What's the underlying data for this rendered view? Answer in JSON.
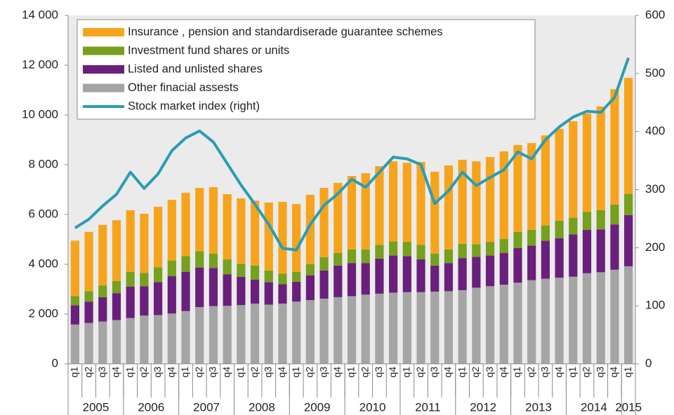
{
  "chart_data": {
    "type": "bar",
    "stacked": true,
    "categories": [
      "q1",
      "q2",
      "q3",
      "q4",
      "q1",
      "q2",
      "q3",
      "q4",
      "q1",
      "q2",
      "q3",
      "q4",
      "q1",
      "q2",
      "q3",
      "q4",
      "q1",
      "q2",
      "q3",
      "q4",
      "q1",
      "q2",
      "q3",
      "q4",
      "q1",
      "q2",
      "q3",
      "q4",
      "q1",
      "q2",
      "q3",
      "q4",
      "q1",
      "q2",
      "q3",
      "q4",
      "q1",
      "q2",
      "q3",
      "q4",
      "q1"
    ],
    "groups": [
      {
        "label": "2005",
        "count": 4
      },
      {
        "label": "2006",
        "count": 4
      },
      {
        "label": "2007",
        "count": 4
      },
      {
        "label": "2008",
        "count": 4
      },
      {
        "label": "2009",
        "count": 4
      },
      {
        "label": "2010",
        "count": 4
      },
      {
        "label": "2011",
        "count": 4
      },
      {
        "label": "2012",
        "count": 4
      },
      {
        "label": "2013",
        "count": 4
      },
      {
        "label": "2014",
        "count": 4
      },
      {
        "label": "2015",
        "count": 1
      }
    ],
    "series": [
      {
        "name": "Other finacial assests",
        "color": "#a5a5a5",
        "type": "bar",
        "values": [
          1580,
          1640,
          1700,
          1760,
          1840,
          1940,
          1960,
          2020,
          2120,
          2280,
          2320,
          2330,
          2360,
          2420,
          2380,
          2420,
          2500,
          2560,
          2620,
          2680,
          2720,
          2780,
          2820,
          2860,
          2880,
          2880,
          2900,
          2920,
          2960,
          3060,
          3120,
          3180,
          3260,
          3360,
          3420,
          3460,
          3500,
          3640,
          3680,
          3780,
          3920
        ]
      },
      {
        "name": "Listed and unlisted shares",
        "color": "#6a1f7c",
        "type": "bar",
        "values": [
          770,
          860,
          980,
          1080,
          1260,
          1180,
          1320,
          1500,
          1580,
          1590,
          1530,
          1270,
          1140,
          960,
          900,
          780,
          800,
          990,
          1130,
          1270,
          1330,
          1270,
          1410,
          1490,
          1450,
          1320,
          1050,
          1130,
          1290,
          1240,
          1230,
          1270,
          1390,
          1390,
          1530,
          1590,
          1700,
          1740,
          1720,
          1820,
          2060
        ]
      },
      {
        "name": "Investment fund shares or units",
        "color": "#76a01d",
        "type": "bar",
        "values": [
          370,
          420,
          470,
          490,
          600,
          530,
          600,
          630,
          630,
          650,
          580,
          600,
          520,
          570,
          470,
          420,
          400,
          450,
          530,
          510,
          550,
          550,
          550,
          570,
          570,
          580,
          480,
          550,
          570,
          500,
          550,
          570,
          650,
          630,
          610,
          700,
          670,
          730,
          770,
          800,
          850
        ]
      },
      {
        "name": "Insurance , pension and standardiserade guarantee schemes",
        "color": "#f7a41d",
        "type": "bar",
        "values": [
          2230,
          2380,
          2430,
          2440,
          2470,
          2380,
          2430,
          2440,
          2540,
          2550,
          2670,
          2620,
          2630,
          2610,
          2730,
          2890,
          2720,
          2790,
          2790,
          2810,
          2950,
          3060,
          3160,
          3220,
          3180,
          3330,
          3290,
          3370,
          3380,
          3340,
          3410,
          3520,
          3490,
          3490,
          3620,
          3690,
          3880,
          3950,
          4170,
          4640,
          4660
        ]
      },
      {
        "name": "Stock market index (right)",
        "color": "#2a9db3",
        "type": "line",
        "axis": "y2",
        "values": [
          234,
          249,
          272,
          292,
          330,
          302,
          327,
          367,
          389,
          401,
          382,
          345,
          308,
          275,
          240,
          199,
          196,
          240,
          273,
          293,
          318,
          304,
          330,
          356,
          353,
          343,
          276,
          298,
          330,
          307,
          321,
          334,
          365,
          353,
          386,
          408,
          425,
          435,
          433,
          459,
          527
        ]
      }
    ],
    "legend_order": [
      3,
      2,
      1,
      0,
      4
    ],
    "legend": "upper left",
    "ylim": [
      0,
      14000
    ],
    "yticks": [
      0,
      {
        "value": 2000,
        "label": "2 000"
      },
      {
        "value": 4000,
        "label": "4 000"
      },
      {
        "value": 6000,
        "label": "6 000"
      },
      {
        "value": 8000,
        "label": "8 000"
      },
      {
        "value": 10000,
        "label": "10 000"
      },
      {
        "value": 12000,
        "label": "12 000"
      },
      {
        "value": 14000,
        "label": "14 000"
      }
    ],
    "y2lim": [
      0,
      600
    ],
    "y2ticks": [
      0,
      100,
      200,
      300,
      400,
      500,
      600
    ]
  }
}
